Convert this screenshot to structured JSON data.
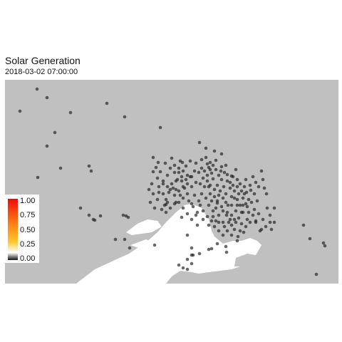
{
  "title": "Solar Generation",
  "subtitle": "2018-03-02 07:00:00",
  "colors": {
    "land": "#c0c0c0",
    "water": "#ffffff",
    "marker": "#222222"
  },
  "legend": {
    "labels": [
      "1.00",
      "0.75",
      "0.50",
      "0.25",
      "0.00"
    ],
    "gradient": [
      "#ee0b0b",
      "#ff7d14",
      "#ffc72b",
      "#ffffff",
      "#111111"
    ]
  },
  "chart_data": {
    "type": "scatter",
    "x_range": [
      0,
      468
    ],
    "y_range": [
      0,
      286
    ],
    "points": [
      [
        45,
        13
      ],
      [
        59,
        25
      ],
      [
        21,
        44
      ],
      [
        92,
        46
      ],
      [
        143,
        33
      ],
      [
        168,
        52
      ],
      [
        218,
        67
      ],
      [
        70,
        74
      ],
      [
        59,
        93
      ],
      [
        78,
        124
      ],
      [
        118,
        121
      ],
      [
        121,
        128
      ],
      [
        46,
        137
      ],
      [
        106,
        180
      ],
      [
        118,
        190
      ],
      [
        124,
        196
      ],
      [
        126,
        197
      ],
      [
        166,
        190
      ],
      [
        170,
        191
      ],
      [
        173,
        193
      ],
      [
        134,
        191
      ],
      [
        155,
        224
      ],
      [
        168,
        224
      ],
      [
        175,
        236
      ],
      [
        210,
        232
      ],
      [
        226,
        186
      ],
      [
        226,
        175
      ],
      [
        240,
        172
      ],
      [
        248,
        193
      ],
      [
        256,
        218
      ],
      [
        262,
        236
      ],
      [
        264,
        246
      ],
      [
        256,
        266
      ],
      [
        262,
        246
      ],
      [
        273,
        244
      ],
      [
        286,
        238
      ],
      [
        290,
        237
      ],
      [
        298,
        230
      ],
      [
        310,
        234
      ],
      [
        311,
        242
      ],
      [
        327,
        220
      ],
      [
        335,
        214
      ],
      [
        358,
        212
      ],
      [
        352,
        200
      ],
      [
        360,
        210
      ],
      [
        374,
        210
      ],
      [
        378,
        180
      ],
      [
        419,
        204
      ],
      [
        428,
        223
      ],
      [
        447,
        229
      ],
      [
        449,
        233
      ],
      [
        437,
        273
      ],
      [
        208,
        109
      ],
      [
        215,
        116
      ],
      [
        212,
        123
      ],
      [
        208,
        129
      ],
      [
        218,
        129
      ],
      [
        225,
        117
      ],
      [
        232,
        124
      ],
      [
        238,
        130
      ],
      [
        246,
        114
      ],
      [
        249,
        116
      ],
      [
        254,
        121
      ],
      [
        260,
        114
      ],
      [
        268,
        117
      ],
      [
        273,
        88
      ],
      [
        276,
        112
      ],
      [
        282,
        109
      ],
      [
        284,
        118
      ],
      [
        286,
        123
      ],
      [
        290,
        131
      ],
      [
        292,
        139
      ],
      [
        288,
        148
      ],
      [
        296,
        113
      ],
      [
        303,
        128
      ],
      [
        304,
        140
      ],
      [
        307,
        150
      ],
      [
        312,
        133
      ],
      [
        318,
        135
      ],
      [
        320,
        148
      ],
      [
        324,
        126
      ],
      [
        326,
        140
      ],
      [
        330,
        146
      ],
      [
        336,
        150
      ],
      [
        339,
        158
      ],
      [
        345,
        155
      ],
      [
        350,
        160
      ],
      [
        354,
        170
      ],
      [
        360,
        128
      ],
      [
        362,
        140
      ],
      [
        364,
        152
      ],
      [
        367,
        160
      ],
      [
        372,
        190
      ],
      [
        368,
        180
      ],
      [
        352,
        198
      ],
      [
        344,
        200
      ],
      [
        338,
        206
      ],
      [
        332,
        186
      ],
      [
        326,
        176
      ],
      [
        322,
        166
      ],
      [
        318,
        164
      ],
      [
        313,
        176
      ],
      [
        311,
        190
      ],
      [
        306,
        200
      ],
      [
        300,
        190
      ],
      [
        298,
        173
      ],
      [
        292,
        184
      ],
      [
        286,
        176
      ],
      [
        282,
        166
      ],
      [
        276,
        160
      ],
      [
        272,
        170
      ],
      [
        266,
        162
      ],
      [
        262,
        150
      ],
      [
        256,
        146
      ],
      [
        252,
        152
      ],
      [
        248,
        142
      ],
      [
        244,
        130
      ],
      [
        240,
        142
      ],
      [
        236,
        152
      ],
      [
        230,
        158
      ],
      [
        226,
        168
      ],
      [
        224,
        176
      ],
      [
        220,
        182
      ],
      [
        214,
        168
      ],
      [
        208,
        160
      ],
      [
        204,
        172
      ],
      [
        210,
        180
      ],
      [
        216,
        150
      ],
      [
        222,
        142
      ],
      [
        228,
        134
      ],
      [
        232,
        154
      ],
      [
        238,
        162
      ],
      [
        244,
        156
      ],
      [
        250,
        166
      ],
      [
        258,
        170
      ],
      [
        264,
        178
      ],
      [
        270,
        186
      ],
      [
        278,
        184
      ],
      [
        284,
        192
      ],
      [
        290,
        198
      ],
      [
        294,
        206
      ],
      [
        300,
        212
      ],
      [
        306,
        218
      ],
      [
        312,
        212
      ],
      [
        318,
        204
      ],
      [
        322,
        196
      ],
      [
        328,
        194
      ],
      [
        334,
        186
      ],
      [
        340,
        178
      ],
      [
        346,
        172
      ],
      [
        350,
        182
      ],
      [
        356,
        188
      ],
      [
        362,
        196
      ],
      [
        366,
        206
      ],
      [
        372,
        200
      ],
      [
        378,
        200
      ],
      [
        340,
        196
      ],
      [
        332,
        202
      ],
      [
        322,
        210
      ],
      [
        314,
        200
      ],
      [
        306,
        184
      ],
      [
        296,
        198
      ],
      [
        286,
        204
      ],
      [
        278,
        196
      ],
      [
        270,
        204
      ],
      [
        262,
        196
      ],
      [
        256,
        188
      ],
      [
        250,
        180
      ],
      [
        244,
        172
      ],
      [
        238,
        174
      ],
      [
        232,
        180
      ],
      [
        228,
        172
      ],
      [
        222,
        160
      ],
      [
        216,
        158
      ],
      [
        234,
        110
      ],
      [
        242,
        140
      ],
      [
        248,
        136
      ],
      [
        254,
        140
      ],
      [
        260,
        136
      ],
      [
        266,
        128
      ],
      [
        272,
        130
      ],
      [
        278,
        138
      ],
      [
        284,
        142
      ],
      [
        288,
        160
      ],
      [
        294,
        154
      ],
      [
        300,
        162
      ],
      [
        306,
        166
      ],
      [
        310,
        160
      ],
      [
        316,
        152
      ],
      [
        322,
        156
      ],
      [
        328,
        160
      ],
      [
        334,
        166
      ],
      [
        338,
        174
      ],
      [
        330,
        176
      ],
      [
        324,
        184
      ],
      [
        318,
        190
      ],
      [
        312,
        186
      ],
      [
        304,
        178
      ],
      [
        298,
        170
      ],
      [
        294,
        164
      ],
      [
        286,
        150
      ],
      [
        280,
        150
      ],
      [
        274,
        146
      ],
      [
        268,
        144
      ],
      [
        262,
        136
      ],
      [
        256,
        134
      ],
      [
        250,
        128
      ],
      [
        244,
        124
      ],
      [
        238,
        120
      ],
      [
        276,
        124
      ],
      [
        280,
        128
      ],
      [
        284,
        134
      ],
      [
        288,
        126
      ],
      [
        292,
        120
      ],
      [
        296,
        126
      ],
      [
        300,
        134
      ],
      [
        304,
        122
      ],
      [
        308,
        130
      ],
      [
        312,
        142
      ],
      [
        316,
        144
      ],
      [
        320,
        136
      ],
      [
        326,
        150
      ],
      [
        332,
        156
      ],
      [
        338,
        140
      ],
      [
        344,
        148
      ],
      [
        348,
        136
      ],
      [
        352,
        144
      ],
      [
        356,
        150
      ],
      [
        304,
        104
      ],
      [
        310,
        120
      ],
      [
        298,
        148
      ],
      [
        292,
        192
      ],
      [
        300,
        200
      ],
      [
        308,
        206
      ],
      [
        316,
        196
      ],
      [
        324,
        200
      ],
      [
        330,
        212
      ],
      [
        348,
        190
      ],
      [
        342,
        168
      ],
      [
        336,
        160
      ],
      [
        274,
        176
      ],
      [
        268,
        190
      ],
      [
        262,
        174
      ],
      [
        256,
        160
      ],
      [
        250,
        150
      ],
      [
        246,
        162
      ],
      [
        240,
        154
      ],
      [
        234,
        146
      ],
      [
        228,
        150
      ],
      [
        222,
        146
      ],
      [
        214,
        138
      ],
      [
        206,
        146
      ],
      [
        202,
        154
      ],
      [
        290,
        170
      ],
      [
        296,
        180
      ],
      [
        302,
        156
      ],
      [
        310,
        172
      ],
      [
        318,
        176
      ],
      [
        326,
        168
      ],
      [
        334,
        176
      ],
      [
        342,
        186
      ],
      [
        318,
        218
      ],
      [
        326,
        226
      ],
      [
        288,
        116
      ],
      [
        282,
        96
      ],
      [
        294,
        100
      ],
      [
        262,
        258
      ],
      [
        250,
        264
      ],
      [
        244,
        260
      ],
      [
        256,
        252
      ]
    ]
  }
}
